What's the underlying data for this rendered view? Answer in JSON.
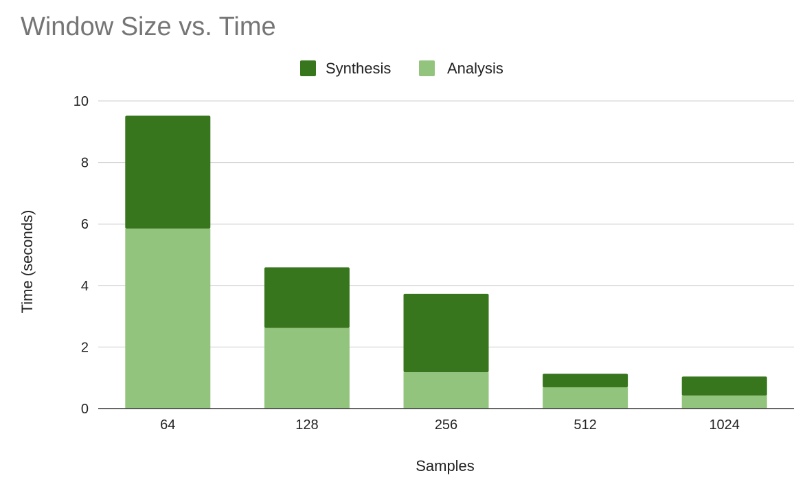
{
  "chart_data": {
    "type": "bar",
    "stacked": true,
    "title": "Window Size vs. Time",
    "xlabel": "Samples",
    "ylabel": "Time (seconds)",
    "categories": [
      "64",
      "128",
      "256",
      "512",
      "1024"
    ],
    "ylim": [
      0,
      10
    ],
    "yticks": [
      "0",
      "2",
      "4",
      "6",
      "8",
      "10"
    ],
    "grid": true,
    "legend_position": "top",
    "series": [
      {
        "name": "Analysis",
        "color": "#93c47d",
        "values": [
          5.85,
          2.62,
          1.18,
          0.69,
          0.42
        ]
      },
      {
        "name": "Synthesis",
        "color": "#38761d",
        "values": [
          3.67,
          1.97,
          2.55,
          0.44,
          0.62
        ]
      }
    ],
    "legend": [
      {
        "name": "Synthesis",
        "color": "#38761d"
      },
      {
        "name": "Analysis",
        "color": "#93c47d"
      }
    ]
  }
}
